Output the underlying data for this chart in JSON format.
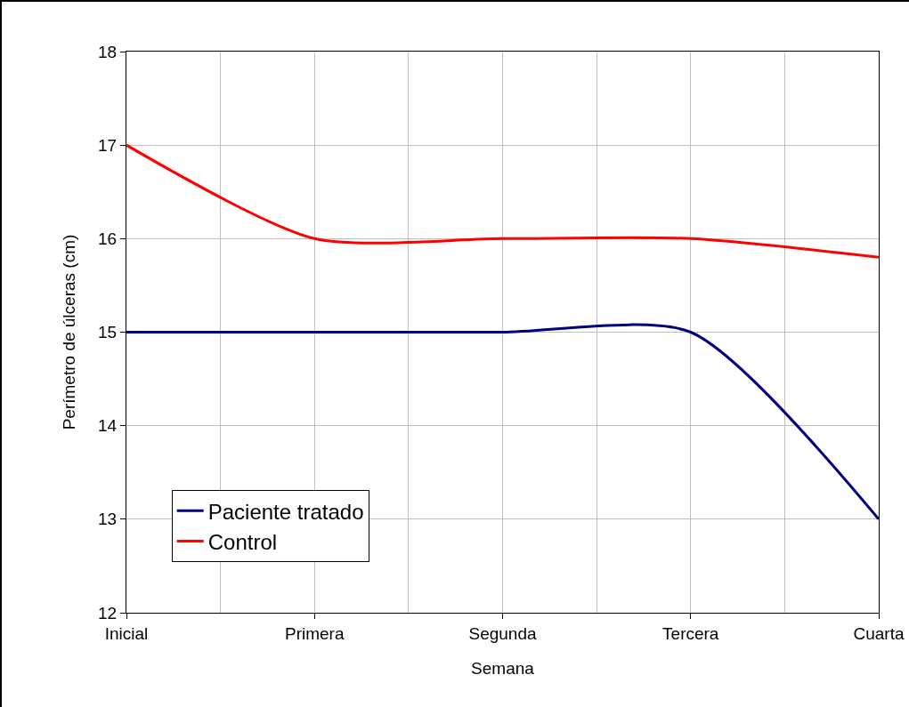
{
  "chart_data": {
    "type": "line",
    "xlabel": "Semana",
    "ylabel": "Perímetro de úlceras (cm)",
    "categories": [
      "Inicial",
      "Primera",
      "Segunda",
      "Tercera",
      "Cuarta"
    ],
    "series": [
      {
        "name": "Paciente tratado",
        "color": "#000080",
        "values": [
          15,
          15,
          15,
          15,
          13
        ]
      },
      {
        "name": "Control",
        "color": "#ff0000",
        "values": [
          17,
          16,
          16,
          16,
          15.8
        ]
      }
    ],
    "ylim": [
      12,
      18
    ],
    "yticks": [
      12,
      13,
      14,
      15,
      16,
      17,
      18
    ],
    "grid": true,
    "legend": "bottom left",
    "marker": "none",
    "line_style": "solid"
  }
}
